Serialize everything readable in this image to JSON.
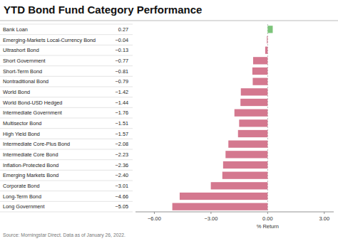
{
  "chart_data": {
    "type": "bar",
    "orientation": "horizontal",
    "title": "YTD Bond Fund Category Performance",
    "xlabel": "% Return",
    "source": "Source: Morningstar Direct. Data as of January 26, 2022.",
    "categories": [
      "Bank Loan",
      "Emerging-Markets Local-Currency Bond",
      "Ultrashort Bond",
      "Short Government",
      "Short-Term Bond",
      "Nontraditional Bond",
      "World Bond",
      "World Bond-USD Hedged",
      "Intermediate Government",
      "Multisector Bond",
      "High Yield Bond",
      "Intermediate Core-Plus Bond",
      "Intermediate Core Bond",
      "Inflation-Protected Bond",
      "Emerging Markets Bond",
      "Corporate Bond",
      "Long-Term Bond",
      "Long Government"
    ],
    "values": [
      0.27,
      -0.04,
      -0.13,
      -0.77,
      -0.81,
      -0.79,
      -1.42,
      -1.44,
      -1.76,
      -1.51,
      -1.57,
      -2.08,
      -2.23,
      -2.36,
      -2.4,
      -3.01,
      -4.66,
      -5.05
    ],
    "value_labels": [
      "0.27",
      "−0.04",
      "−0.13",
      "−0.77",
      "−0.81",
      "−0.79",
      "−1.42",
      "−1.44",
      "−1.76",
      "−1.51",
      "−1.57",
      "−2.08",
      "−2.23",
      "−2.36",
      "−2.40",
      "−3.01",
      "−4.66",
      "−5.05"
    ],
    "data_labels": true,
    "colors": [
      "#7cc47a",
      "#d4788f",
      "#d4788f",
      "#d4788f",
      "#d4788f",
      "#d4788f",
      "#d4788f",
      "#d4788f",
      "#d4788f",
      "#d4788f",
      "#d4788f",
      "#d4788f",
      "#d4788f",
      "#d4788f",
      "#d4788f",
      "#d4788f",
      "#d4788f",
      "#d4788f"
    ],
    "xlim": [
      -7,
      3.5
    ],
    "xticks": [
      {
        "value": -6,
        "label": "−6.00"
      },
      {
        "value": -3,
        "label": "−3.00"
      },
      {
        "value": 0,
        "label": "0.00"
      },
      {
        "value": 3,
        "label": "3.00"
      }
    ],
    "grid": false
  }
}
